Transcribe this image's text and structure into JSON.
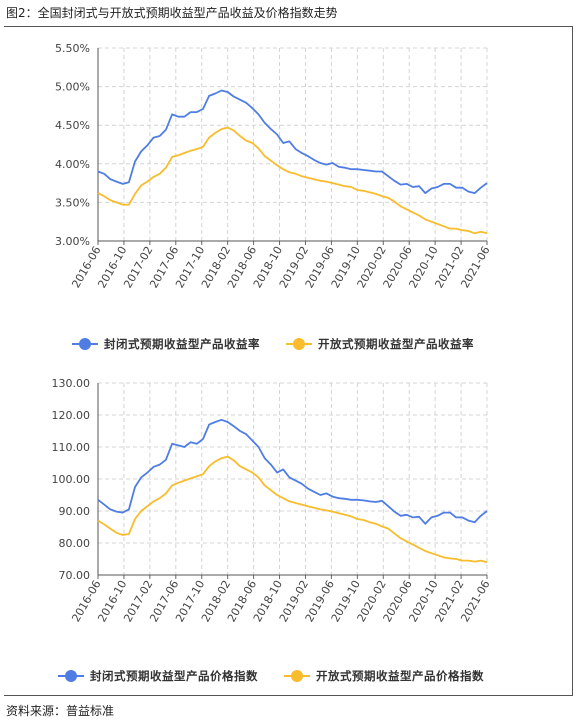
{
  "figure": {
    "title": "图2：全国封闭式与开放式预期收益型产品收益及价格指数走势",
    "source": "资料来源：普益标准"
  },
  "chart_data": [
    {
      "type": "line",
      "ylim": [
        3.0,
        5.5
      ],
      "yticks": [
        "5.50%",
        "5.00%",
        "4.50%",
        "4.00%",
        "3.50%",
        "3.00%"
      ],
      "x_tick_labels": [
        "2016-06",
        "2016-10",
        "2017-02",
        "2017-06",
        "2017-10",
        "2018-02",
        "2018-06",
        "2018-10",
        "2019-02",
        "2019-06",
        "2019-10",
        "2020-02",
        "2020-06",
        "2020-10",
        "2021-02",
        "2021-06"
      ],
      "grid": true,
      "legend_position": "bottom",
      "colors": [
        "#4f7de3",
        "#f8bc2c"
      ],
      "series": [
        {
          "name": "封闭式预期收益型产品收益率",
          "values": [
            3.9,
            3.87,
            3.8,
            3.77,
            3.74,
            3.76,
            4.03,
            4.16,
            4.24,
            4.34,
            4.36,
            4.44,
            4.64,
            4.61,
            4.61,
            4.67,
            4.67,
            4.71,
            4.88,
            4.91,
            4.95,
            4.93,
            4.87,
            4.83,
            4.79,
            4.72,
            4.64,
            4.53,
            4.45,
            4.38,
            4.27,
            4.29,
            4.19,
            4.14,
            4.1,
            4.05,
            4.01,
            3.99,
            4.01,
            3.96,
            3.95,
            3.93,
            3.93,
            3.92,
            3.91,
            3.9,
            3.9,
            3.84,
            3.78,
            3.73,
            3.74,
            3.7,
            3.71,
            3.62,
            3.68,
            3.7,
            3.74,
            3.74,
            3.69,
            3.69,
            3.64,
            3.62,
            3.69,
            3.75
          ]
        },
        {
          "name": "开放式预期收益型产品收益率",
          "values": [
            3.62,
            3.58,
            3.53,
            3.5,
            3.47,
            3.47,
            3.61,
            3.72,
            3.77,
            3.83,
            3.87,
            3.95,
            4.09,
            4.11,
            4.14,
            4.17,
            4.19,
            4.22,
            4.34,
            4.4,
            4.45,
            4.47,
            4.43,
            4.36,
            4.3,
            4.27,
            4.2,
            4.1,
            4.04,
            3.98,
            3.93,
            3.89,
            3.87,
            3.84,
            3.82,
            3.8,
            3.78,
            3.77,
            3.75,
            3.73,
            3.71,
            3.7,
            3.66,
            3.65,
            3.63,
            3.61,
            3.58,
            3.56,
            3.51,
            3.45,
            3.41,
            3.37,
            3.33,
            3.28,
            3.25,
            3.22,
            3.19,
            3.16,
            3.16,
            3.14,
            3.13,
            3.1,
            3.12,
            3.1
          ]
        }
      ]
    },
    {
      "type": "line",
      "ylim": [
        70,
        130
      ],
      "yticks": [
        "130.00",
        "120.00",
        "110.00",
        "100.00",
        "90.00",
        "80.00",
        "70.00"
      ],
      "x_tick_labels": [
        "2016-06",
        "2016-10",
        "2017-02",
        "2017-06",
        "2017-10",
        "2018-02",
        "2018-06",
        "2018-10",
        "2019-02",
        "2019-06",
        "2019-10",
        "2020-02",
        "2020-06",
        "2020-10",
        "2021-02",
        "2021-06"
      ],
      "grid": true,
      "legend_position": "bottom",
      "colors": [
        "#4f7de3",
        "#f8bc2c"
      ],
      "series": [
        {
          "name": "封闭式预期收益型产品价格指数",
          "values": [
            93.5,
            92.0,
            90.5,
            89.8,
            89.5,
            90.5,
            97.5,
            100.5,
            102.0,
            103.8,
            104.5,
            106.0,
            111.0,
            110.5,
            110.0,
            111.5,
            111.0,
            112.5,
            117.0,
            117.8,
            118.5,
            117.8,
            116.5,
            115.0,
            114.0,
            112.0,
            110.0,
            106.5,
            104.5,
            102.0,
            103.0,
            100.5,
            99.5,
            98.5,
            97.0,
            96.0,
            95.0,
            95.5,
            94.5,
            94.0,
            93.8,
            93.5,
            93.5,
            93.3,
            93.0,
            92.8,
            93.2,
            91.5,
            89.8,
            88.5,
            88.8,
            88.0,
            88.2,
            86.0,
            88.0,
            88.5,
            89.5,
            89.5,
            88.0,
            88.0,
            87.0,
            86.5,
            88.5,
            90.0
          ]
        },
        {
          "name": "开放式预期收益型产品价格指数",
          "values": [
            87.0,
            85.8,
            84.5,
            83.2,
            82.5,
            82.8,
            87.5,
            90.0,
            91.5,
            93.0,
            94.0,
            95.5,
            98.0,
            98.8,
            99.5,
            100.2,
            100.8,
            101.5,
            104.0,
            105.5,
            106.5,
            107.0,
            105.8,
            104.0,
            103.0,
            102.0,
            100.5,
            98.0,
            96.5,
            95.0,
            94.0,
            93.0,
            92.5,
            92.0,
            91.5,
            91.0,
            90.5,
            90.2,
            89.8,
            89.3,
            88.8,
            88.3,
            87.5,
            87.2,
            86.5,
            86.0,
            85.2,
            84.5,
            83.0,
            81.5,
            80.5,
            79.5,
            78.5,
            77.5,
            76.8,
            76.2,
            75.5,
            75.2,
            75.0,
            74.5,
            74.5,
            74.2,
            74.5,
            74.0
          ]
        }
      ]
    }
  ]
}
